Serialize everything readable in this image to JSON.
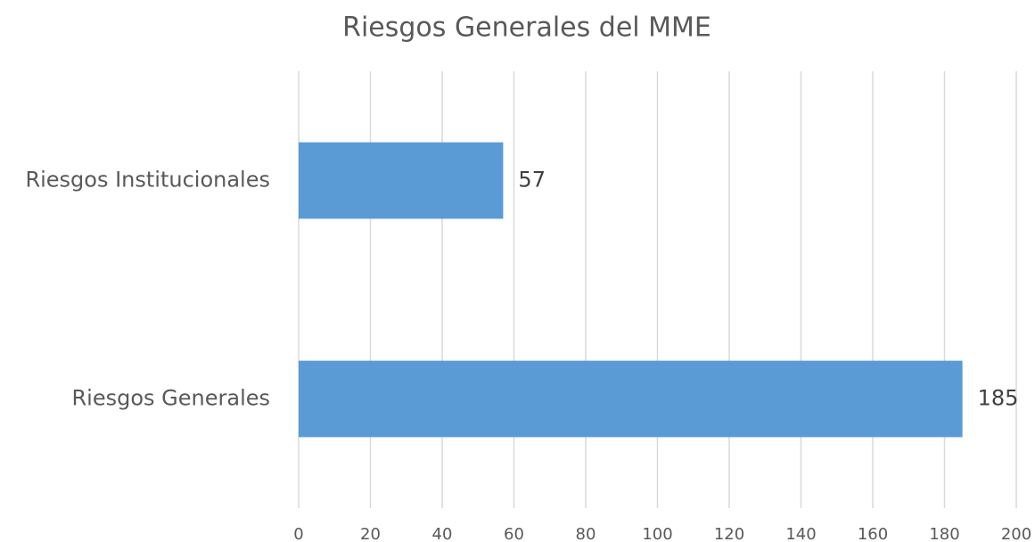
{
  "chart_data": {
    "type": "barh",
    "title": "Riesgos Generales del MME",
    "categories": [
      "Riesgos Institucionales",
      "Riesgos Generales"
    ],
    "values": [
      57,
      185
    ],
    "color": "#5b9bd5",
    "xlim": [
      0,
      200
    ],
    "xticks": [
      0,
      20,
      40,
      60,
      80,
      100,
      120,
      140,
      160,
      180,
      200
    ],
    "grid": true
  }
}
